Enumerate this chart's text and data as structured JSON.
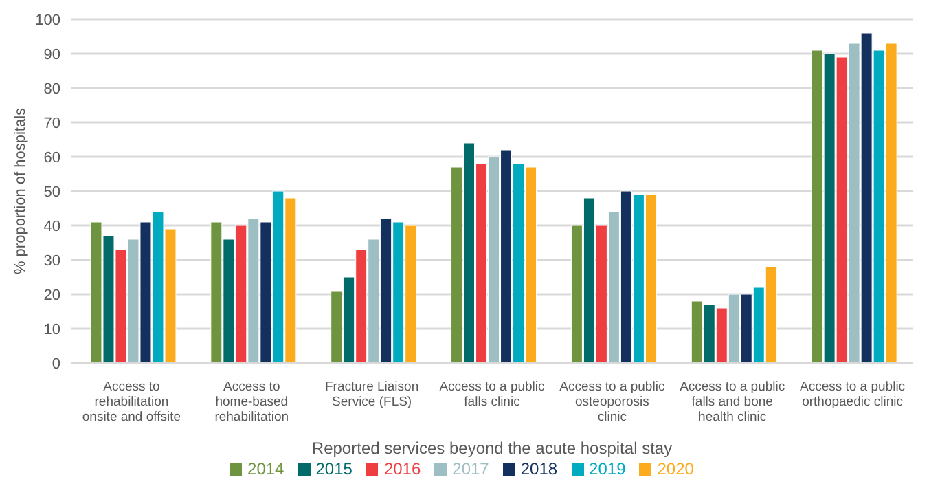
{
  "chart_data": {
    "type": "bar",
    "xlabel": "Reported services beyond the acute hospital stay",
    "ylabel": "% proportion of hospitals",
    "categories": [
      "Access to rehabilitation onsite and offsite",
      "Access to home-based rehabilitation",
      "Fracture Liaison Service (FLS)",
      "Access to a public falls clinic",
      "Access to a public osteoporosis clinic",
      "Access to a public falls and bone health clinic",
      "Access to a public orthopaedic clinic"
    ],
    "series": [
      {
        "name": "2014",
        "color": "#6e9440",
        "values": [
          41,
          41,
          21,
          57,
          40,
          18,
          91
        ]
      },
      {
        "name": "2015",
        "color": "#006b68",
        "values": [
          37,
          36,
          25,
          64,
          48,
          17,
          90
        ]
      },
      {
        "name": "2016",
        "color": "#ef3e42",
        "values": [
          33,
          40,
          33,
          58,
          40,
          16,
          89
        ]
      },
      {
        "name": "2017",
        "color": "#9dbfc3",
        "values": [
          36,
          42,
          36,
          60,
          44,
          20,
          93
        ]
      },
      {
        "name": "2018",
        "color": "#14305e",
        "values": [
          41,
          41,
          42,
          62,
          50,
          20,
          96
        ]
      },
      {
        "name": "2019",
        "color": "#00abc0",
        "values": [
          44,
          50,
          41,
          58,
          49,
          22,
          91
        ]
      },
      {
        "name": "2020",
        "color": "#fbab1c",
        "values": [
          39,
          48,
          40,
          57,
          49,
          28,
          93
        ]
      }
    ],
    "ylim": [
      0,
      100
    ],
    "yticks": [
      0,
      10,
      20,
      30,
      40,
      50,
      60,
      70,
      80,
      90,
      100
    ],
    "grid": "y",
    "legend": "bottom"
  }
}
